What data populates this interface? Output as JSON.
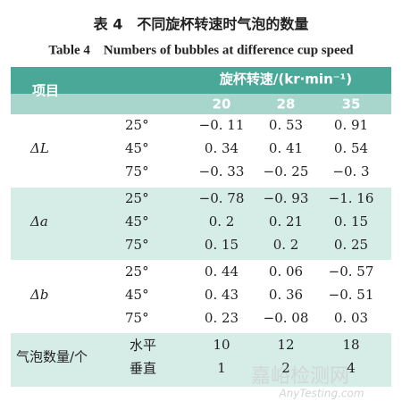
{
  "title": "表 4　不同旋杯转速时气泡的数量",
  "subtitle": "Table 4　Numbers of bubbles at difference cup speed",
  "table": {
    "header": {
      "item": "项目",
      "speed": "旋杯转速/(kr·min⁻¹)",
      "columns": [
        "20",
        "28",
        "35"
      ]
    },
    "groups": [
      {
        "label": "ΔL",
        "rows": [
          {
            "label": "25°",
            "cells": [
              "−0. 11",
              "0. 53",
              "0. 91"
            ]
          },
          {
            "label": "45°",
            "cells": [
              "0. 34",
              "0. 41",
              "0. 54"
            ]
          },
          {
            "label": "75°",
            "cells": [
              "−0. 33",
              "−0. 25",
              "−0. 3"
            ]
          }
        ]
      },
      {
        "label": "Δa",
        "rows": [
          {
            "label": "25°",
            "cells": [
              "−0. 78",
              "−0. 93",
              "−1. 16"
            ]
          },
          {
            "label": "45°",
            "cells": [
              "0. 2",
              "0. 21",
              "0. 15"
            ]
          },
          {
            "label": "75°",
            "cells": [
              "0. 15",
              "0. 2",
              "0. 25"
            ]
          }
        ]
      },
      {
        "label": "Δb",
        "rows": [
          {
            "label": "25°",
            "cells": [
              "0. 44",
              "0. 06",
              "−0. 57"
            ]
          },
          {
            "label": "45°",
            "cells": [
              "0. 43",
              "0. 36",
              "−0. 51"
            ]
          },
          {
            "label": "75°",
            "cells": [
              "0. 23",
              "−0. 08",
              "0. 03"
            ]
          }
        ]
      },
      {
        "label": "气泡数量/个",
        "rows": [
          {
            "label": "水平",
            "cells": [
              "10",
              "12",
              "18"
            ]
          },
          {
            "label": "垂直",
            "cells": [
              "1",
              "2",
              "4"
            ]
          }
        ]
      }
    ]
  },
  "watermark": {
    "cn": "嘉峪检测网",
    "en": "AnyTesting.com"
  }
}
